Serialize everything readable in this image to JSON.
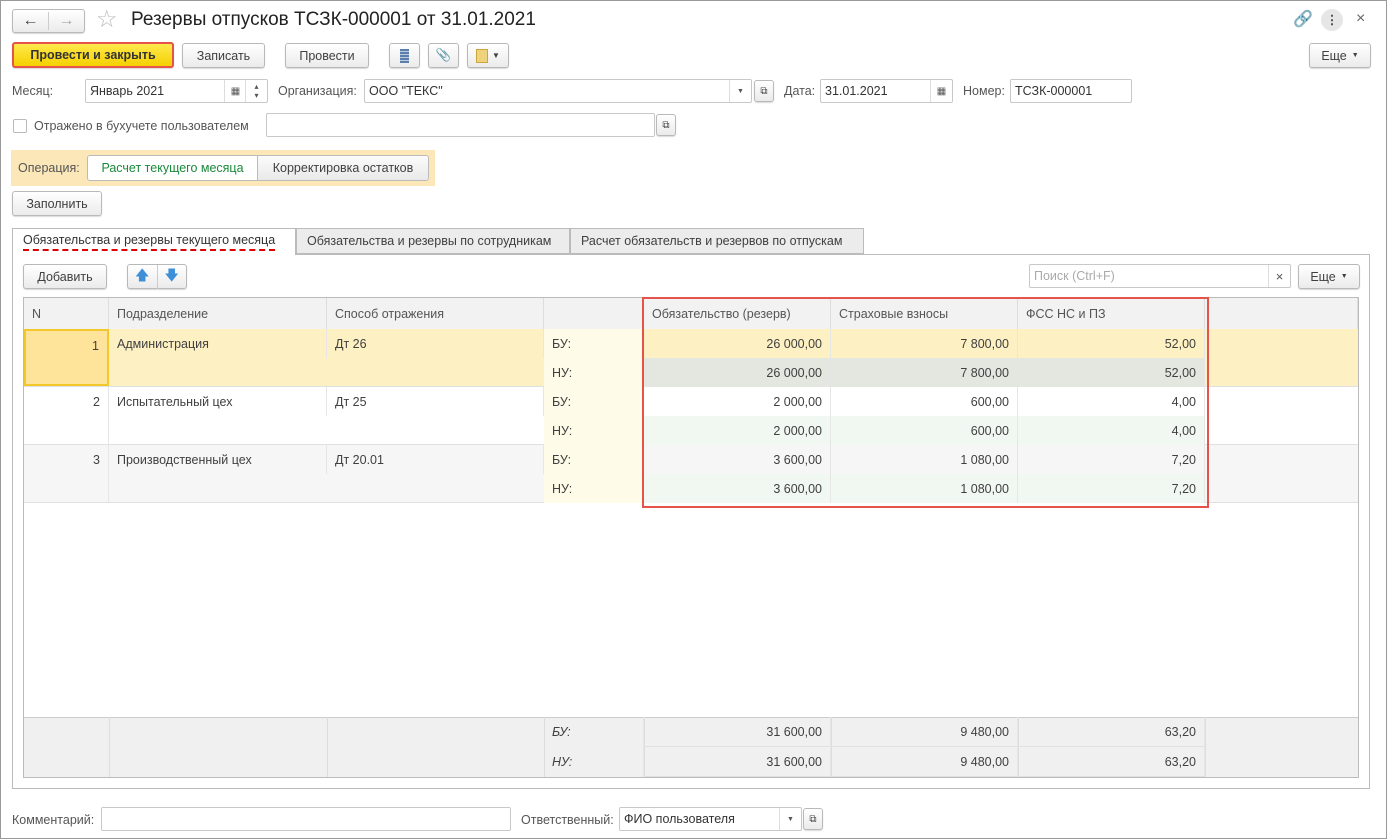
{
  "window": {
    "title": "Резервы отпусков ТСЗК-000001 от 31.01.2021"
  },
  "toolbar": {
    "post_close": "Провести и закрыть",
    "save": "Записать",
    "post": "Провести",
    "more": "Еще"
  },
  "fields": {
    "month_label": "Месяц:",
    "month_value": "Январь 2021",
    "org_label": "Организация:",
    "org_value": "ООО \"ТЕКС\"",
    "date_label": "Дата:",
    "date_value": "31.01.2021",
    "number_label": "Номер:",
    "number_value": "ТСЗК-000001",
    "reflected_label": "Отражено в бухучете пользователем",
    "reflected_checked": false,
    "reflected_value": ""
  },
  "operation": {
    "label": "Операция:",
    "options": [
      "Расчет текущего месяца",
      "Корректировка остатков"
    ],
    "selected": "Расчет текущего месяца"
  },
  "fill_button": "Заполнить",
  "tabs": [
    {
      "label": "Обязательства и резервы текущего месяца",
      "active": true
    },
    {
      "label": "Обязательства и резервы по сотрудникам"
    },
    {
      "label": "Расчет обязательств и резервов по отпускам"
    }
  ],
  "table_toolbar": {
    "add": "Добавить",
    "search_placeholder": "Поиск (Ctrl+F)",
    "more": "Еще"
  },
  "table": {
    "columns": [
      "N",
      "Подразделение",
      "Способ отражения",
      "",
      "Обязательство (резерв)",
      "Страховые взносы",
      "ФСС НС и ПЗ"
    ],
    "rows": [
      {
        "n": "1",
        "dept": "Администрация",
        "method": "Дт 26",
        "bu_label": "БУ:",
        "nu_label": "НУ:",
        "bu": [
          "26 000,00",
          "7 800,00",
          "52,00"
        ],
        "nu": [
          "26 000,00",
          "7 800,00",
          "52,00"
        ]
      },
      {
        "n": "2",
        "dept": "Испытательный цех",
        "method": "Дт 25",
        "bu_label": "БУ:",
        "nu_label": "НУ:",
        "bu": [
          "2 000,00",
          "600,00",
          "4,00"
        ],
        "nu": [
          "2 000,00",
          "600,00",
          "4,00"
        ]
      },
      {
        "n": "3",
        "dept": "Производственный цех",
        "method": "Дт 20.01",
        "bu_label": "БУ:",
        "nu_label": "НУ:",
        "bu": [
          "3 600,00",
          "1 080,00",
          "7,20"
        ],
        "nu": [
          "3 600,00",
          "1 080,00",
          "7,20"
        ]
      }
    ],
    "totals": {
      "bu_label": "БУ:",
      "nu_label": "НУ:",
      "bu": [
        "31 600,00",
        "9 480,00",
        "63,20"
      ],
      "nu": [
        "31 600,00",
        "9 480,00",
        "63,20"
      ]
    }
  },
  "footer": {
    "comment_label": "Комментарий:",
    "comment_value": "",
    "responsible_label": "Ответственный:",
    "responsible_value": "ФИО пользователя"
  }
}
